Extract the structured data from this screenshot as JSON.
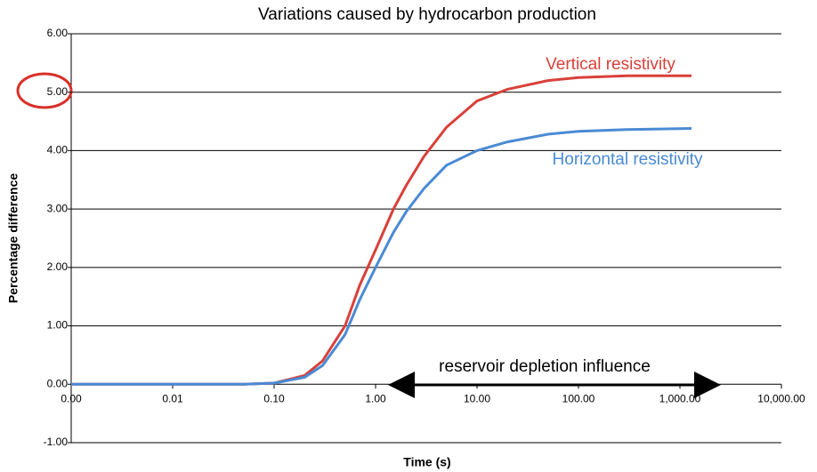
{
  "chart_data": {
    "type": "line",
    "title": "Variations caused  by hydrocarbon production",
    "x_label": "Time (s)",
    "y_label": "Percentage difference",
    "x_log": true,
    "grid": true,
    "xlim": [
      0.001,
      10000
    ],
    "xticks": [
      {
        "value": 0.001,
        "label": "0.00"
      },
      {
        "value": 0.01,
        "label": "0.01"
      },
      {
        "value": 0.1,
        "label": "0.10"
      },
      {
        "value": 1,
        "label": "1.00"
      },
      {
        "value": 10,
        "label": "10.00"
      },
      {
        "value": 100,
        "label": "100.00"
      },
      {
        "value": 1000,
        "label": "1,000.00"
      },
      {
        "value": 10000,
        "label": "10,000.00"
      }
    ],
    "ylim": [
      -1,
      6
    ],
    "yticks": [
      {
        "value": -1,
        "label": "-1.00"
      },
      {
        "value": 0,
        "label": "0.00"
      },
      {
        "value": 1,
        "label": "1.00"
      },
      {
        "value": 2,
        "label": "2.00"
      },
      {
        "value": 3,
        "label": "3.00"
      },
      {
        "value": 4,
        "label": "4.00"
      },
      {
        "value": 5,
        "label": "5.00"
      },
      {
        "value": 6,
        "label": "6.00"
      }
    ],
    "x": [
      0.001,
      0.01,
      0.05,
      0.1,
      0.2,
      0.3,
      0.5,
      0.7,
      1,
      1.5,
      2,
      3,
      5,
      10,
      20,
      50,
      100,
      300,
      1300
    ],
    "series": [
      {
        "name": "Vertical resistivity",
        "color": "#d9403a",
        "values": [
          0,
          0,
          0,
          0.02,
          0.15,
          0.4,
          1.0,
          1.7,
          2.3,
          3.0,
          3.4,
          3.9,
          4.4,
          4.85,
          5.05,
          5.2,
          5.25,
          5.28,
          5.28
        ]
      },
      {
        "name": "Horizontal resistivity",
        "color": "#4a8ad4",
        "values": [
          0,
          0,
          0,
          0.02,
          0.12,
          0.32,
          0.85,
          1.45,
          2.0,
          2.6,
          2.95,
          3.35,
          3.75,
          4.0,
          4.15,
          4.28,
          4.33,
          4.36,
          4.38
        ]
      }
    ],
    "annotation": "reservoir depletion influence"
  }
}
